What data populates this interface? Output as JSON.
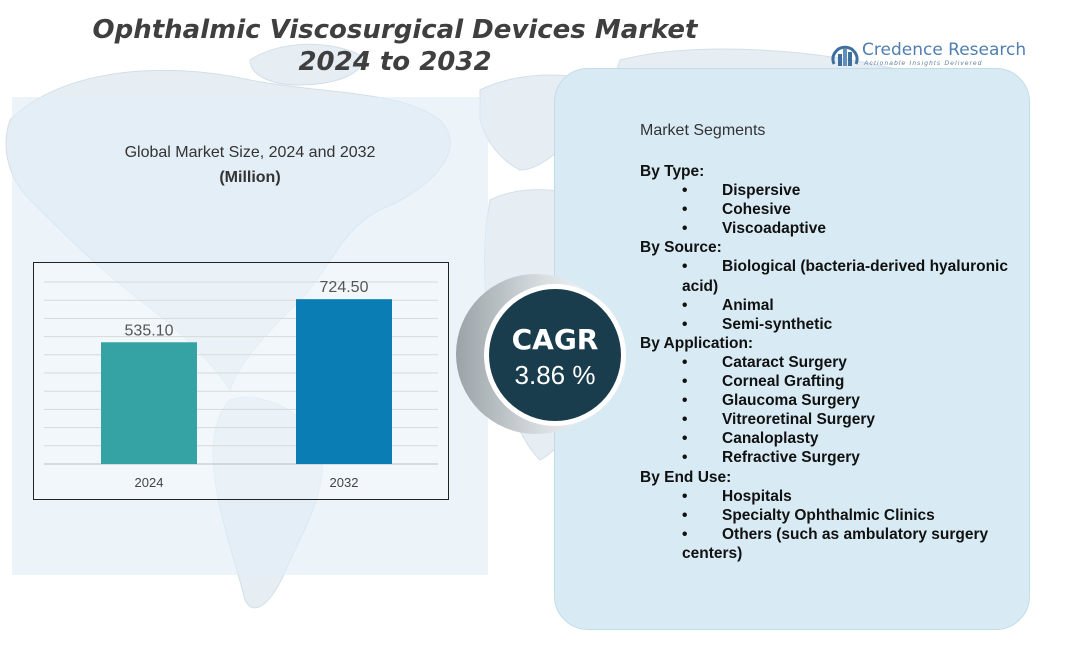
{
  "title": {
    "line1": "Ophthalmic Viscosurgical Devices Market",
    "line2": "2024 to 2032"
  },
  "logo": {
    "name": "Credence Research",
    "tagline": "Actionable Insights Delivered",
    "icon": "bar-chart-circle-icon"
  },
  "chart_data": {
    "type": "bar",
    "title": "Global Market Size, 2024 and 2032",
    "subtitle": "(Million)",
    "categories": [
      "2024",
      "2032"
    ],
    "values": [
      535.1,
      724.5
    ],
    "value_labels": [
      "535.10",
      "724.50"
    ],
    "bar_colors": [
      "#35a3a3",
      "#0a7db4"
    ],
    "ylim": [
      0,
      800
    ],
    "grid": true,
    "legend": "none"
  },
  "cagr": {
    "label": "CAGR",
    "value": "3.86 %"
  },
  "segments": {
    "heading": "Market Segments",
    "groups": [
      {
        "title": "By Type:",
        "items": [
          "Dispersive",
          "Cohesive",
          "Viscoadaptive"
        ]
      },
      {
        "title": "By Source:",
        "items": [
          "Biological (bacteria-derived hyaluronic acid)",
          "Animal",
          "Semi-synthetic"
        ]
      },
      {
        "title": "By Application:",
        "items": [
          "Cataract Surgery",
          "Corneal Grafting",
          "Glaucoma Surgery",
          "Vitreoretinal Surgery",
          "Canaloplasty",
          "Refractive Surgery"
        ]
      },
      {
        "title": "By End Use:",
        "items": [
          "Hospitals",
          "Specialty Ophthalmic Clinics",
          "Others (such as ambulatory surgery centers)"
        ]
      }
    ]
  },
  "colors": {
    "title": "#3f3f3f",
    "cagr_bg": "#1a3d4d",
    "segment_panel": "#d8ebf4",
    "chart_panel": "#e1eef7",
    "logo": "#4f7fb0"
  }
}
